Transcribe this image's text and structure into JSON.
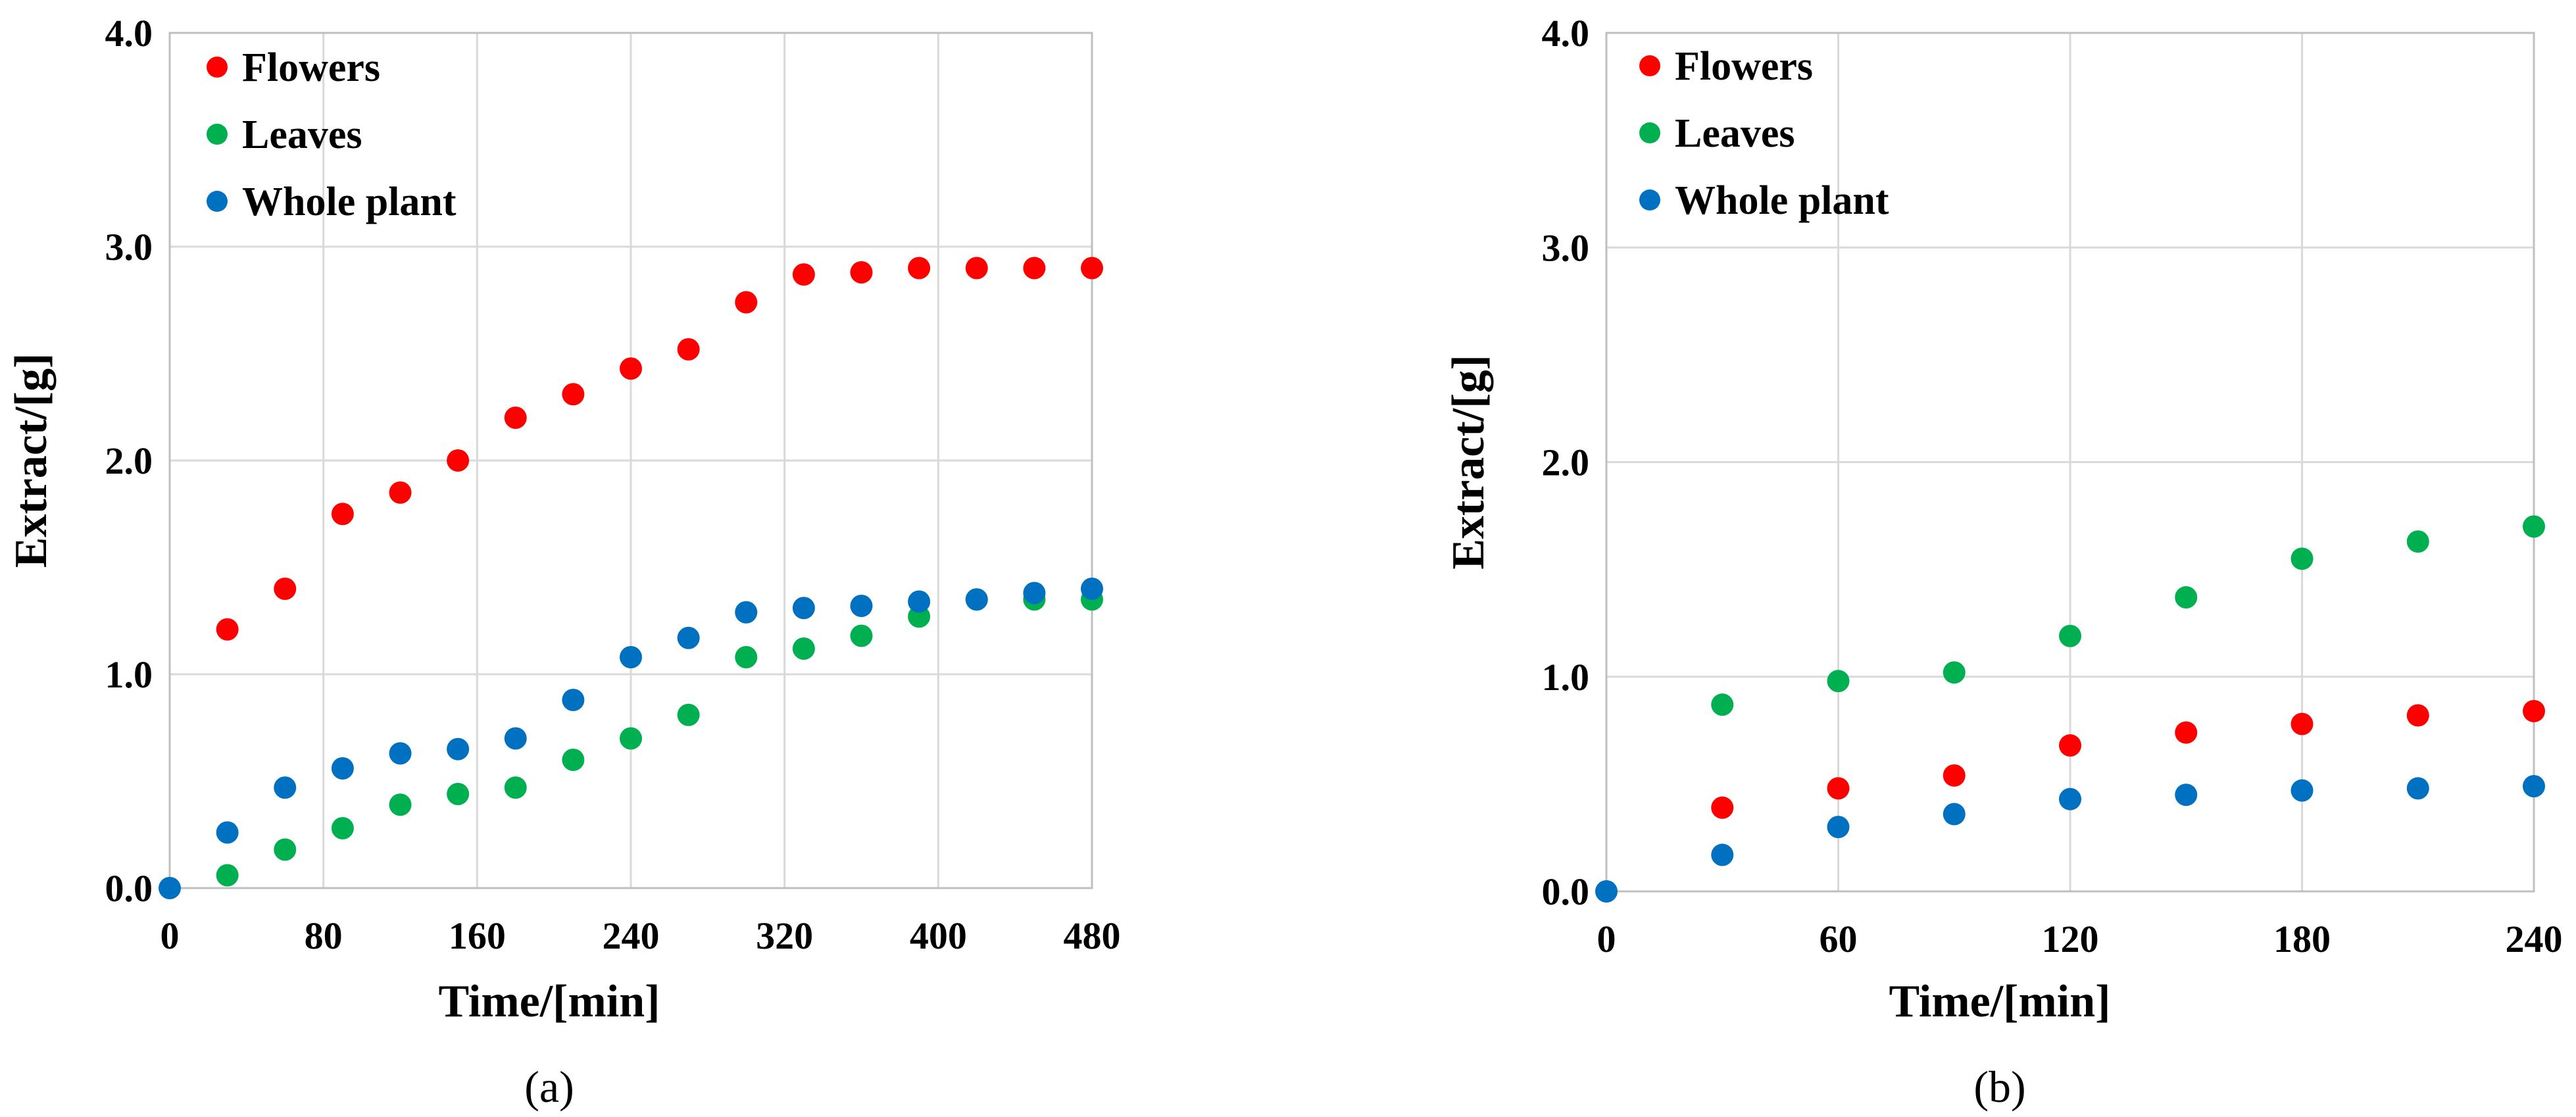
{
  "chart_data": [
    {
      "type": "scatter",
      "panel_label": "(a)",
      "xlabel": "Time/[min]",
      "ylabel": "Extract/[g]",
      "xlim": [
        0,
        480
      ],
      "ylim": [
        0,
        4
      ],
      "xticks": [
        0,
        80,
        160,
        240,
        320,
        400,
        480
      ],
      "xtick_labels": [
        "0",
        "80",
        "160",
        "240",
        "320",
        "400",
        "480"
      ],
      "yticks": [
        0,
        1,
        2,
        3,
        4
      ],
      "ytick_labels": [
        "0.0",
        "1.0",
        "2.0",
        "3.0",
        "4.0"
      ],
      "grid": true,
      "legend_position": "top-left",
      "series": [
        {
          "name": "Flowers",
          "color": "#ff0000",
          "x": [
            30,
            60,
            90,
            120,
            150,
            180,
            210,
            240,
            270,
            300,
            330,
            360,
            390,
            420,
            450,
            480
          ],
          "y": [
            1.21,
            1.4,
            1.75,
            1.85,
            2.0,
            2.2,
            2.31,
            2.43,
            2.52,
            2.74,
            2.87,
            2.88,
            2.9,
            2.9,
            2.9,
            2.9
          ]
        },
        {
          "name": "Leaves",
          "color": "#00b050",
          "x": [
            30,
            60,
            90,
            120,
            150,
            180,
            210,
            240,
            270,
            300,
            330,
            360,
            390,
            420,
            450,
            480
          ],
          "y": [
            0.06,
            0.18,
            0.28,
            0.39,
            0.44,
            0.47,
            0.6,
            0.7,
            0.81,
            1.08,
            1.12,
            1.18,
            1.27,
            1.35,
            1.35,
            1.35
          ]
        },
        {
          "name": "Whole plant",
          "color": "#0070c0",
          "x": [
            0,
            30,
            60,
            90,
            120,
            150,
            180,
            210,
            240,
            270,
            300,
            330,
            360,
            390,
            420,
            450,
            480
          ],
          "y": [
            0.0,
            0.26,
            0.47,
            0.56,
            0.63,
            0.65,
            0.7,
            0.88,
            1.08,
            1.17,
            1.29,
            1.31,
            1.32,
            1.34,
            1.35,
            1.38,
            1.4
          ]
        }
      ]
    },
    {
      "type": "scatter",
      "panel_label": "(b)",
      "xlabel": "Time/[min]",
      "ylabel": "Extract/[g]",
      "xlim": [
        0,
        240
      ],
      "ylim": [
        0,
        4
      ],
      "xticks": [
        0,
        60,
        120,
        180,
        240
      ],
      "xtick_labels": [
        "0",
        "60",
        "120",
        "180",
        "240"
      ],
      "yticks": [
        0,
        1,
        2,
        3,
        4
      ],
      "ytick_labels": [
        "0.0",
        "1.0",
        "2.0",
        "3.0",
        "4.0"
      ],
      "grid": true,
      "legend_position": "top-left",
      "series": [
        {
          "name": "Flowers",
          "color": "#ff0000",
          "x": [
            30,
            60,
            90,
            120,
            150,
            180,
            210,
            240
          ],
          "y": [
            0.39,
            0.48,
            0.54,
            0.68,
            0.74,
            0.78,
            0.82,
            0.84
          ]
        },
        {
          "name": "Leaves",
          "color": "#00b050",
          "x": [
            30,
            60,
            90,
            120,
            150,
            180,
            210,
            240
          ],
          "y": [
            0.87,
            0.98,
            1.02,
            1.19,
            1.37,
            1.55,
            1.63,
            1.7
          ]
        },
        {
          "name": "Whole plant",
          "color": "#0070c0",
          "x": [
            0,
            30,
            60,
            90,
            120,
            150,
            180,
            210,
            240
          ],
          "y": [
            0.0,
            0.17,
            0.3,
            0.36,
            0.43,
            0.45,
            0.47,
            0.48,
            0.49
          ]
        }
      ]
    }
  ]
}
